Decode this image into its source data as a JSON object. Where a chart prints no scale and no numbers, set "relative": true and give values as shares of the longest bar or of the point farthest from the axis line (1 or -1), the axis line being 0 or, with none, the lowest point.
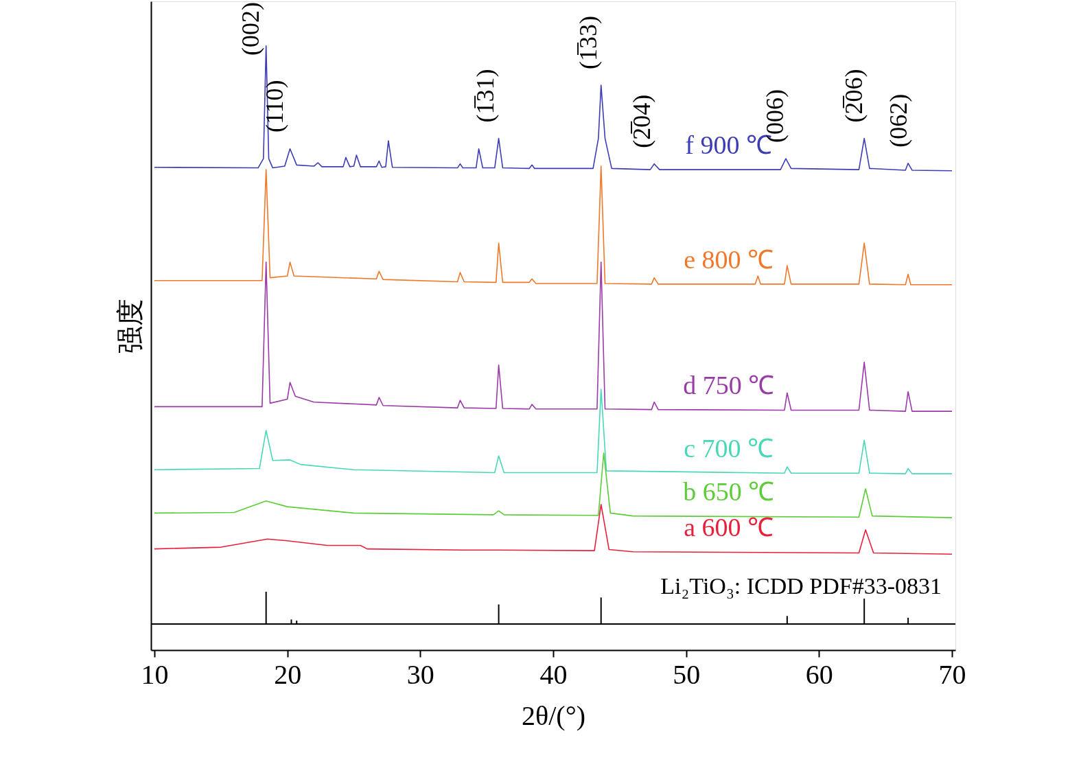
{
  "chart_data": {
    "type": "line",
    "relative": true,
    "xlabel": "2θ/(°)",
    "ylabel": "强度",
    "xlim": [
      10,
      70
    ],
    "xticks": [
      10,
      20,
      30,
      40,
      50,
      60,
      70
    ],
    "tick_labels": "x",
    "grid": false,
    "series": [
      {
        "name": "f 900 ℃",
        "color": "#3c3cb4",
        "x": [
          10,
          17.8,
          18.2,
          18.4,
          18.6,
          18.9,
          19.8,
          20.2,
          20.7,
          22.0,
          22.3,
          22.6,
          24.2,
          24.4,
          24.7,
          25.0,
          25.2,
          25.5,
          26.7,
          26.9,
          27.1,
          27.4,
          27.6,
          27.9,
          32.8,
          33.0,
          33.2,
          34.2,
          34.4,
          34.7,
          35.6,
          35.9,
          36.2,
          38.2,
          38.4,
          38.6,
          43.0,
          43.4,
          43.6,
          43.9,
          44.4,
          47.3,
          47.6,
          48.0,
          57.1,
          57.5,
          57.9,
          63.0,
          63.4,
          63.8,
          66.5,
          66.7,
          67.0,
          70
        ],
        "values": [
          0.79,
          0.789,
          0.805,
          1.0,
          0.805,
          0.789,
          0.792,
          0.822,
          0.794,
          0.792,
          0.798,
          0.791,
          0.791,
          0.807,
          0.791,
          0.792,
          0.811,
          0.791,
          0.791,
          0.801,
          0.79,
          0.791,
          0.836,
          0.79,
          0.789,
          0.796,
          0.789,
          0.789,
          0.822,
          0.789,
          0.789,
          0.84,
          0.789,
          0.788,
          0.794,
          0.788,
          0.788,
          0.84,
          0.932,
          0.84,
          0.788,
          0.786,
          0.796,
          0.786,
          0.786,
          0.805,
          0.788,
          0.786,
          0.84,
          0.788,
          0.785,
          0.797,
          0.785,
          0.784
        ]
      },
      {
        "name": "e 800 ℃",
        "color": "#f07828",
        "x": [
          10,
          18.1,
          18.4,
          18.7,
          20.0,
          20.2,
          20.5,
          26.7,
          26.9,
          27.2,
          32.8,
          33.0,
          33.3,
          35.7,
          35.9,
          36.2,
          38.2,
          38.4,
          38.7,
          43.3,
          43.6,
          43.9,
          47.4,
          47.6,
          47.9,
          55.2,
          55.4,
          55.6,
          57.4,
          57.6,
          57.9,
          63.0,
          63.4,
          63.8,
          66.5,
          66.7,
          66.9,
          70
        ],
        "values": [
          0.594,
          0.594,
          0.786,
          0.599,
          0.602,
          0.626,
          0.602,
          0.597,
          0.61,
          0.596,
          0.592,
          0.608,
          0.592,
          0.591,
          0.659,
          0.591,
          0.591,
          0.597,
          0.589,
          0.589,
          0.792,
          0.589,
          0.588,
          0.599,
          0.588,
          0.588,
          0.602,
          0.588,
          0.588,
          0.62,
          0.588,
          0.588,
          0.659,
          0.588,
          0.587,
          0.605,
          0.587,
          0.587
        ]
      },
      {
        "name": "d 750 ℃",
        "color": "#9a3aa8",
        "x": [
          10,
          18.1,
          18.4,
          18.7,
          20.0,
          20.2,
          20.6,
          22,
          26.7,
          26.9,
          27.2,
          32.8,
          33.0,
          33.3,
          35.7,
          35.9,
          36.2,
          38.2,
          38.4,
          38.7,
          43.3,
          43.6,
          43.9,
          47.4,
          47.6,
          47.9,
          57.4,
          57.6,
          57.9,
          63.0,
          63.4,
          63.8,
          66.5,
          66.7,
          67.0,
          70
        ],
        "values": [
          0.376,
          0.376,
          0.626,
          0.382,
          0.389,
          0.418,
          0.394,
          0.384,
          0.379,
          0.392,
          0.378,
          0.374,
          0.387,
          0.374,
          0.373,
          0.448,
          0.373,
          0.372,
          0.38,
          0.372,
          0.372,
          0.626,
          0.372,
          0.371,
          0.384,
          0.371,
          0.37,
          0.4,
          0.37,
          0.37,
          0.453,
          0.37,
          0.368,
          0.402,
          0.368,
          0.368
        ]
      },
      {
        "name": "c 700 ℃",
        "color": "#48d8b8",
        "x": [
          10,
          17.9,
          18.4,
          18.9,
          20.2,
          21,
          25,
          35.6,
          35.9,
          36.3,
          43.3,
          43.6,
          44.0,
          57.4,
          57.6,
          57.9,
          63.0,
          63.4,
          63.8,
          66.5,
          66.7,
          67,
          70
        ],
        "values": [
          0.267,
          0.269,
          0.335,
          0.283,
          0.284,
          0.276,
          0.267,
          0.262,
          0.291,
          0.262,
          0.262,
          0.406,
          0.265,
          0.261,
          0.272,
          0.261,
          0.261,
          0.318,
          0.261,
          0.26,
          0.269,
          0.26,
          0.26
        ]
      },
      {
        "name": "b 650 ℃",
        "color": "#5ccc38",
        "x": [
          10,
          16,
          18.4,
          20,
          25,
          35.5,
          35.9,
          36.3,
          43.4,
          43.8,
          44.3,
          46,
          63.0,
          63.5,
          64.0,
          70
        ],
        "values": [
          0.192,
          0.193,
          0.213,
          0.203,
          0.192,
          0.189,
          0.196,
          0.189,
          0.188,
          0.296,
          0.192,
          0.187,
          0.185,
          0.234,
          0.187,
          0.184
        ]
      },
      {
        "name": "a 600 ℃",
        "color": "#e8203c",
        "x": [
          10,
          15,
          18.5,
          20,
          23,
          25.5,
          26,
          33.3,
          35.9,
          43.1,
          43.6,
          44.2,
          46,
          63.0,
          63.5,
          64.1,
          70
        ],
        "values": [
          0.13,
          0.133,
          0.147,
          0.144,
          0.136,
          0.136,
          0.13,
          0.128,
          0.128,
          0.127,
          0.207,
          0.129,
          0.125,
          0.123,
          0.163,
          0.123,
          0.121
        ]
      },
      {
        "type": "bar",
        "color": "#000000",
        "x": [
          18.4,
          20.3,
          20.7,
          35.9,
          43.6,
          57.6,
          63.4,
          66.7
        ],
        "values": [
          0.056,
          0.008,
          0.006,
          0.034,
          0.046,
          0.014,
          0.044,
          0.011
        ]
      }
    ],
    "ref_lines": [
      {
        "axis": "y",
        "value": 0,
        "color": "#000000"
      }
    ],
    "annotations": [
      {
        "text": "(002)",
        "x": 18.4,
        "y": 1.0
      },
      {
        "text": "(110)",
        "x": 20.2,
        "y": 0.822
      },
      {
        "text": "(1̅31)",
        "x": 35.9,
        "y": 0.84
      },
      {
        "text": "(1̅33)",
        "x": 43.6,
        "y": 0.932
      },
      {
        "text": "(2̅04)",
        "x": 47.6,
        "y": 0.796
      },
      {
        "text": "(006)",
        "x": 57.5,
        "y": 0.805
      },
      {
        "text": "(2̅06)",
        "x": 63.4,
        "y": 0.84
      },
      {
        "text": "(062)",
        "x": 66.7,
        "y": 0.797
      },
      "Li₂TiO₃: ICDD PDF#33-0831"
    ]
  }
}
